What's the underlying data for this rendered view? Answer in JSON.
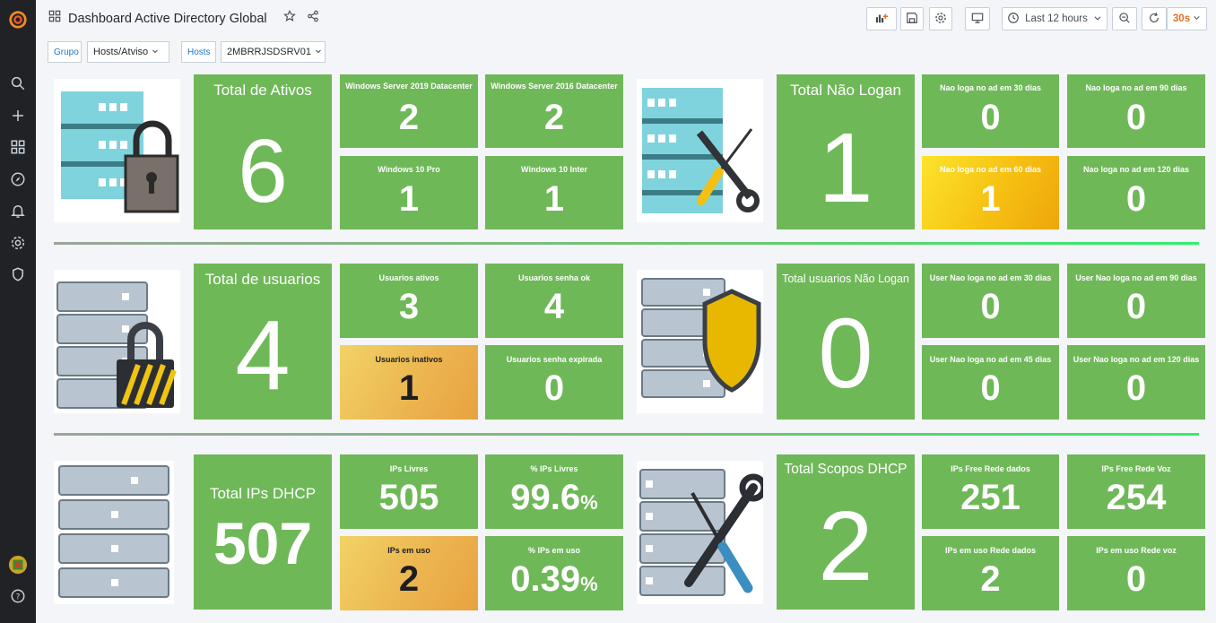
{
  "header": {
    "title": "Dashboard Active Directory Global",
    "time_range": "Last 12 hours",
    "refresh_interval": "30s"
  },
  "variables": [
    {
      "label": "Grupo",
      "value": "Hosts/Atviso"
    },
    {
      "label": "Hosts",
      "value": "2MBRRJSDSRV01"
    }
  ],
  "colors": {
    "sidebar": "#202226",
    "panel_green": "#6fb858",
    "panel_yellow": "#f6c012",
    "panel_orange": "#ecb550",
    "refresh_accent": "#e56f24"
  },
  "icons": [
    "grafana-logo-icon",
    "search-icon",
    "plus-icon",
    "dashboards-icon",
    "explore-icon",
    "alerting-icon",
    "configuration-icon",
    "shield-icon",
    "user-avatar-icon",
    "help-icon",
    "add-panel-icon",
    "save-icon",
    "settings-icon",
    "tv-mode-icon",
    "clock-icon",
    "zoom-out-icon",
    "refresh-icon",
    "star-icon",
    "share-icon"
  ],
  "rows": {
    "ativos": {
      "total": {
        "title": "Total de Ativos",
        "value": "6"
      },
      "stats": [
        {
          "title": "Windows Server 2019 Datacenter",
          "value": "2"
        },
        {
          "title": "Windows Server 2016 Datacenter",
          "value": "2"
        },
        {
          "title": "Windows 10 Pro",
          "value": "1"
        },
        {
          "title": "Windows 10 Inter",
          "value": "1"
        }
      ],
      "total_right": {
        "title": "Total Não Logan",
        "value": "1"
      },
      "stats_right": [
        {
          "title": "Nao loga no ad em 30 dias",
          "value": "0"
        },
        {
          "title": "Nao loga no ad em 90 dias",
          "value": "0"
        },
        {
          "title": "Nao loga no ad em 60 dias",
          "value": "1"
        },
        {
          "title": "Nao loga no ad em 120 dias",
          "value": "0"
        }
      ]
    },
    "usuarios": {
      "total": {
        "title": "Total de usuarios",
        "value": "4"
      },
      "stats": [
        {
          "title": "Usuarios ativos",
          "value": "3"
        },
        {
          "title": "Usuarios senha ok",
          "value": "4"
        },
        {
          "title": "Usuarios inativos",
          "value": "1"
        },
        {
          "title": "Usuarios senha expirada",
          "value": "0"
        }
      ],
      "total_right": {
        "title": "Total usuarios Não Logan",
        "value": "0"
      },
      "stats_right": [
        {
          "title": "User Nao loga no ad em 30 dias",
          "value": "0"
        },
        {
          "title": "User Nao loga no ad em 90 dias",
          "value": "0"
        },
        {
          "title": "User Nao loga no ad em 45 dias",
          "value": "0"
        },
        {
          "title": "User Nao loga no ad em 120 dias",
          "value": "0"
        }
      ]
    },
    "dhcp": {
      "total": {
        "title": "Total IPs DHCP",
        "value": "507"
      },
      "stats": [
        {
          "title": "IPs Livres",
          "value": "505",
          "unit": ""
        },
        {
          "title": "% IPs Livres",
          "value": "99.6",
          "unit": "%"
        },
        {
          "title": "IPs em uso",
          "value": "2",
          "unit": ""
        },
        {
          "title": "% IPs em uso",
          "value": "0.39",
          "unit": "%"
        }
      ],
      "total_right": {
        "title": "Total Scopos DHCP",
        "value": "2"
      },
      "stats_right": [
        {
          "title": "IPs Free Rede dados",
          "value": "251"
        },
        {
          "title": "IPs Free Rede Voz",
          "value": "254"
        },
        {
          "title": "IPs em uso Rede dados",
          "value": "2"
        },
        {
          "title": "IPs em uso Rede voz",
          "value": "0"
        }
      ]
    }
  }
}
